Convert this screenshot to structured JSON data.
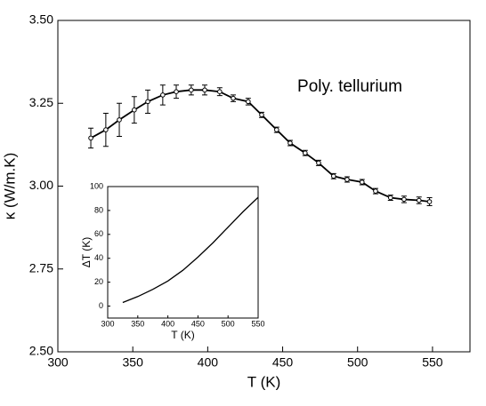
{
  "chart_data": [
    {
      "type": "line",
      "annotation": "Poly. tellurium",
      "xlabel": "T (K)",
      "ylabel": "κ (W/m.K)",
      "x": [
        322,
        332,
        341,
        351,
        360,
        370,
        379,
        389,
        398,
        408,
        417,
        427,
        436,
        446,
        455,
        465,
        474,
        484,
        493,
        503,
        512,
        522,
        531,
        541,
        548
      ],
      "series": [
        {
          "color": "#000000",
          "values": [
            3.145,
            3.17,
            3.2,
            3.23,
            3.255,
            3.275,
            3.285,
            3.29,
            3.29,
            3.285,
            3.265,
            3.255,
            3.215,
            3.17,
            3.13,
            3.1,
            3.07,
            3.03,
            3.02,
            3.012,
            2.985,
            2.965,
            2.96,
            2.957,
            2.953
          ],
          "errors": [
            0.03,
            0.05,
            0.05,
            0.04,
            0.035,
            0.03,
            0.02,
            0.015,
            0.015,
            0.012,
            0.01,
            0.01,
            0.008,
            0.008,
            0.008,
            0.008,
            0.008,
            0.008,
            0.008,
            0.008,
            0.008,
            0.008,
            0.01,
            0.01,
            0.012
          ]
        }
      ],
      "xlim": [
        300,
        575
      ],
      "xticks": [
        300,
        350,
        400,
        450,
        500,
        550
      ],
      "ylim": [
        2.5,
        3.5
      ],
      "yticks": [
        {
          "value": 2.5,
          "label": "2.50"
        },
        {
          "value": 2.75,
          "label": "2.75"
        },
        {
          "value": 3.0,
          "label": "3.00"
        },
        {
          "value": 3.25,
          "label": "3.25"
        },
        {
          "value": 3.5,
          "label": "3.50"
        }
      ]
    },
    {
      "type": "line",
      "xlabel": "T (K)",
      "ylabel": "ΔT (K)",
      "x": [
        325,
        350,
        375,
        400,
        425,
        450,
        475,
        500,
        525,
        550
      ],
      "series": [
        {
          "color": "#000000",
          "values": [
            3,
            8,
            14,
            21,
            30,
            41,
            53,
            66,
            79,
            91
          ]
        }
      ],
      "xlim": [
        300,
        550
      ],
      "xticks": [
        300,
        350,
        400,
        450,
        500,
        550
      ],
      "ylim": [
        -10,
        100
      ],
      "yticks": [
        0,
        20,
        40,
        60,
        80,
        100
      ]
    }
  ]
}
